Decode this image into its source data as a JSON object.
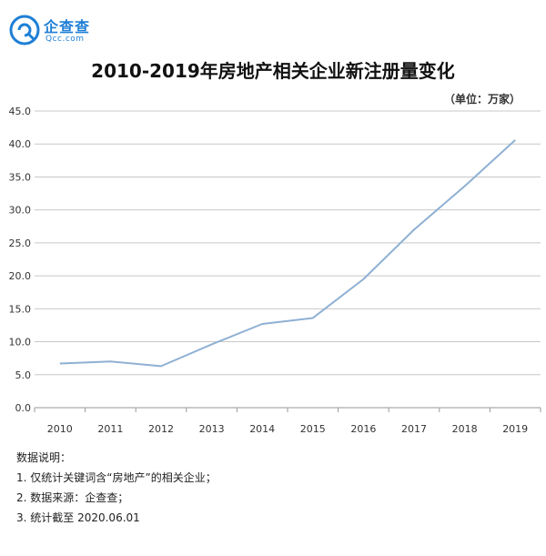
{
  "brand": {
    "name": "企查查",
    "sub": "Qcc.com",
    "color": "#1f7fd6"
  },
  "header": {
    "title": "2010-2019年房地产相关企业新注册量变化",
    "unit": "（单位：万家）"
  },
  "notes": {
    "heading": "数据说明：",
    "lines": [
      "1. 仅统计关键词含“房地产”的相关企业；",
      "2. 数据来源：企查查；",
      "3. 统计截至 2020.06.01"
    ]
  },
  "chart_data": {
    "type": "line",
    "title": "2010-2019年房地产相关企业新注册量变化",
    "xlabel": "",
    "ylabel": "",
    "categories": [
      "2010",
      "2011",
      "2012",
      "2013",
      "2014",
      "2015",
      "2016",
      "2017",
      "2018",
      "2019"
    ],
    "series": [
      {
        "values": [
          6.7,
          7.0,
          6.3,
          9.6,
          12.7,
          13.6,
          19.5,
          27.0,
          33.6,
          40.6
        ],
        "color": "#8fb0d4"
      }
    ],
    "ylim": [
      0,
      45
    ],
    "yticks": [
      "0.0",
      "5.0",
      "10.0",
      "15.0",
      "20.0",
      "25.0",
      "30.0",
      "35.0",
      "40.0",
      "45.0"
    ],
    "grid": true,
    "legend": "none"
  }
}
